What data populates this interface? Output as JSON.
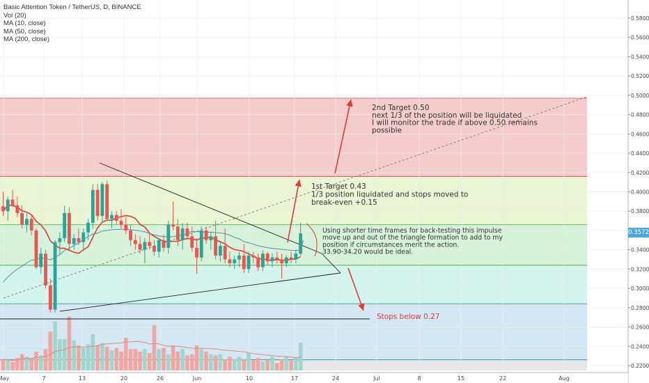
{
  "header": {
    "title": "Basic Attention Token / TetherUS, D, BINANCE",
    "indicators": [
      "Vol (20)",
      "MA (10, close)",
      "MA (50, close)",
      "MA (200, close)"
    ]
  },
  "price_tag": "0.3572",
  "colors": {
    "up": "#26a69a",
    "down": "#ef5350",
    "ma10": "#e53935",
    "ma50": "#5b8aa6",
    "zone_target2": "#f4cccc",
    "zone_target1": "#eaf5d4",
    "zone_entry": "#d6f2d9",
    "zone_lower": "#d3f4ec",
    "zone_stop": "#d4e8f4",
    "zone_bottom": "#e6e6e6",
    "price_tag": "#4ba8d8"
  },
  "annotations": {
    "target2": [
      "2nd Target 0.50",
      "next 1/3 of the position will be liquidated",
      "I will monitor the trade if above 0.50 remains",
      "possible"
    ],
    "target1": [
      "1st Target 0.43",
      "1/3 position liquidated and stops moved to",
      "break-even +0.15"
    ],
    "entry": [
      "Using shorter time frames for back-testing this impulse",
      "move up and out of the triangle formation to add to my",
      "position if circumstances merit the action.",
      "33.90-34.20 would be ideal."
    ],
    "stops": "Stops below 0.27"
  },
  "chart_data": {
    "type": "candlestick",
    "title": "Basic Attention Token / TetherUS, D, BINANCE",
    "x_axis": {
      "labels": [
        "May",
        "7",
        "13",
        "20",
        "26",
        "Jun",
        "10",
        "17",
        "24",
        "Jul",
        "8",
        "15",
        "22",
        "Aug"
      ]
    },
    "y_axis": {
      "ticks": [
        "0.2200",
        "0.2400",
        "0.2600",
        "0.2800",
        "0.3000",
        "0.3200",
        "0.3400",
        "0.3600",
        "0.3800",
        "0.4000",
        "0.4200",
        "0.4400",
        "0.4600",
        "0.4800",
        "0.5000",
        "0.5200",
        "0.5400",
        "0.5600",
        "0.5800"
      ],
      "range": [
        0.215,
        0.59
      ]
    },
    "zones": [
      {
        "name": "target2",
        "from": 0.416,
        "to": 0.497
      },
      {
        "name": "target1",
        "from": 0.366,
        "to": 0.416
      },
      {
        "name": "entry",
        "from": 0.324,
        "to": 0.366
      },
      {
        "name": "lower",
        "from": 0.284,
        "to": 0.324
      },
      {
        "name": "stop",
        "from": 0.226,
        "to": 0.284
      },
      {
        "name": "bottom",
        "from": 0.215,
        "to": 0.226
      }
    ],
    "candles": [
      {
        "o": 0.385,
        "h": 0.4,
        "l": 0.375,
        "c": 0.38
      },
      {
        "o": 0.38,
        "h": 0.395,
        "l": 0.37,
        "c": 0.392
      },
      {
        "o": 0.392,
        "h": 0.402,
        "l": 0.384,
        "c": 0.386
      },
      {
        "o": 0.386,
        "h": 0.395,
        "l": 0.374,
        "c": 0.378
      },
      {
        "o": 0.378,
        "h": 0.386,
        "l": 0.362,
        "c": 0.366
      },
      {
        "o": 0.366,
        "h": 0.378,
        "l": 0.358,
        "c": 0.372
      },
      {
        "o": 0.372,
        "h": 0.376,
        "l": 0.355,
        "c": 0.36
      },
      {
        "o": 0.36,
        "h": 0.362,
        "l": 0.32,
        "c": 0.322
      },
      {
        "o": 0.322,
        "h": 0.342,
        "l": 0.315,
        "c": 0.336
      },
      {
        "o": 0.336,
        "h": 0.34,
        "l": 0.3,
        "c": 0.303
      },
      {
        "o": 0.303,
        "h": 0.31,
        "l": 0.275,
        "c": 0.278
      },
      {
        "o": 0.278,
        "h": 0.35,
        "l": 0.275,
        "c": 0.348
      },
      {
        "o": 0.348,
        "h": 0.358,
        "l": 0.335,
        "c": 0.352
      },
      {
        "o": 0.352,
        "h": 0.386,
        "l": 0.348,
        "c": 0.378
      },
      {
        "o": 0.378,
        "h": 0.384,
        "l": 0.34,
        "c": 0.346
      },
      {
        "o": 0.346,
        "h": 0.356,
        "l": 0.34,
        "c": 0.352
      },
      {
        "o": 0.352,
        "h": 0.362,
        "l": 0.345,
        "c": 0.348
      },
      {
        "o": 0.348,
        "h": 0.362,
        "l": 0.34,
        "c": 0.358
      },
      {
        "o": 0.358,
        "h": 0.372,
        "l": 0.35,
        "c": 0.368
      },
      {
        "o": 0.368,
        "h": 0.408,
        "l": 0.362,
        "c": 0.402
      },
      {
        "o": 0.402,
        "h": 0.408,
        "l": 0.37,
        "c": 0.375
      },
      {
        "o": 0.375,
        "h": 0.41,
        "l": 0.368,
        "c": 0.408
      },
      {
        "o": 0.408,
        "h": 0.412,
        "l": 0.37,
        "c": 0.372
      },
      {
        "o": 0.372,
        "h": 0.38,
        "l": 0.362,
        "c": 0.376
      },
      {
        "o": 0.376,
        "h": 0.38,
        "l": 0.366,
        "c": 0.37
      },
      {
        "o": 0.37,
        "h": 0.382,
        "l": 0.362,
        "c": 0.366
      },
      {
        "o": 0.366,
        "h": 0.374,
        "l": 0.356,
        "c": 0.36
      },
      {
        "o": 0.36,
        "h": 0.366,
        "l": 0.344,
        "c": 0.35
      },
      {
        "o": 0.35,
        "h": 0.356,
        "l": 0.34,
        "c": 0.346
      },
      {
        "o": 0.346,
        "h": 0.354,
        "l": 0.336,
        "c": 0.34
      },
      {
        "o": 0.34,
        "h": 0.352,
        "l": 0.326,
        "c": 0.348
      },
      {
        "o": 0.348,
        "h": 0.358,
        "l": 0.34,
        "c": 0.344
      },
      {
        "o": 0.344,
        "h": 0.35,
        "l": 0.334,
        "c": 0.338
      },
      {
        "o": 0.338,
        "h": 0.352,
        "l": 0.332,
        "c": 0.35
      },
      {
        "o": 0.35,
        "h": 0.356,
        "l": 0.338,
        "c": 0.342
      },
      {
        "o": 0.342,
        "h": 0.37,
        "l": 0.336,
        "c": 0.366
      },
      {
        "o": 0.366,
        "h": 0.39,
        "l": 0.36,
        "c": 0.364
      },
      {
        "o": 0.364,
        "h": 0.372,
        "l": 0.344,
        "c": 0.35
      },
      {
        "o": 0.35,
        "h": 0.368,
        "l": 0.34,
        "c": 0.362
      },
      {
        "o": 0.362,
        "h": 0.368,
        "l": 0.35,
        "c": 0.354
      },
      {
        "o": 0.354,
        "h": 0.364,
        "l": 0.338,
        "c": 0.342
      },
      {
        "o": 0.342,
        "h": 0.352,
        "l": 0.315,
        "c": 0.332
      },
      {
        "o": 0.332,
        "h": 0.364,
        "l": 0.328,
        "c": 0.36
      },
      {
        "o": 0.36,
        "h": 0.364,
        "l": 0.346,
        "c": 0.35
      },
      {
        "o": 0.35,
        "h": 0.358,
        "l": 0.34,
        "c": 0.354
      },
      {
        "o": 0.354,
        "h": 0.37,
        "l": 0.33,
        "c": 0.334
      },
      {
        "o": 0.334,
        "h": 0.348,
        "l": 0.328,
        "c": 0.344
      },
      {
        "o": 0.344,
        "h": 0.362,
        "l": 0.326,
        "c": 0.33
      },
      {
        "o": 0.33,
        "h": 0.338,
        "l": 0.322,
        "c": 0.326
      },
      {
        "o": 0.326,
        "h": 0.334,
        "l": 0.32,
        "c": 0.33
      },
      {
        "o": 0.33,
        "h": 0.338,
        "l": 0.322,
        "c": 0.334
      },
      {
        "o": 0.334,
        "h": 0.346,
        "l": 0.316,
        "c": 0.32
      },
      {
        "o": 0.32,
        "h": 0.338,
        "l": 0.316,
        "c": 0.334
      },
      {
        "o": 0.334,
        "h": 0.338,
        "l": 0.326,
        "c": 0.332
      },
      {
        "o": 0.332,
        "h": 0.336,
        "l": 0.318,
        "c": 0.322
      },
      {
        "o": 0.322,
        "h": 0.34,
        "l": 0.318,
        "c": 0.336
      },
      {
        "o": 0.336,
        "h": 0.338,
        "l": 0.324,
        "c": 0.328
      },
      {
        "o": 0.328,
        "h": 0.336,
        "l": 0.322,
        "c": 0.332
      },
      {
        "o": 0.332,
        "h": 0.338,
        "l": 0.326,
        "c": 0.33
      },
      {
        "o": 0.33,
        "h": 0.336,
        "l": 0.31,
        "c": 0.326
      },
      {
        "o": 0.326,
        "h": 0.334,
        "l": 0.322,
        "c": 0.332
      },
      {
        "o": 0.332,
        "h": 0.338,
        "l": 0.326,
        "c": 0.33
      },
      {
        "o": 0.33,
        "h": 0.34,
        "l": 0.326,
        "c": 0.336
      },
      {
        "o": 0.336,
        "h": 0.368,
        "l": 0.334,
        "c": 0.357
      }
    ],
    "volume_relative": [
      0.18,
      0.16,
      0.14,
      0.2,
      0.26,
      0.22,
      0.2,
      0.3,
      0.24,
      0.34,
      0.62,
      0.78,
      0.5,
      0.5,
      0.86,
      0.48,
      0.4,
      0.36,
      0.42,
      0.58,
      0.4,
      0.44,
      0.38,
      0.32,
      0.36,
      0.3,
      0.52,
      0.34,
      0.34,
      0.3,
      0.34,
      0.28,
      0.72,
      0.34,
      0.36,
      0.26,
      0.4,
      0.3,
      0.34,
      0.24,
      0.26,
      0.4,
      0.34,
      0.3,
      0.26,
      0.24,
      0.26,
      0.18,
      0.22,
      0.18,
      0.22,
      0.18,
      0.28,
      0.16,
      0.2,
      0.14,
      0.16,
      0.22,
      0.12,
      0.18,
      0.22,
      0.16,
      0.2,
      0.44
    ]
  }
}
